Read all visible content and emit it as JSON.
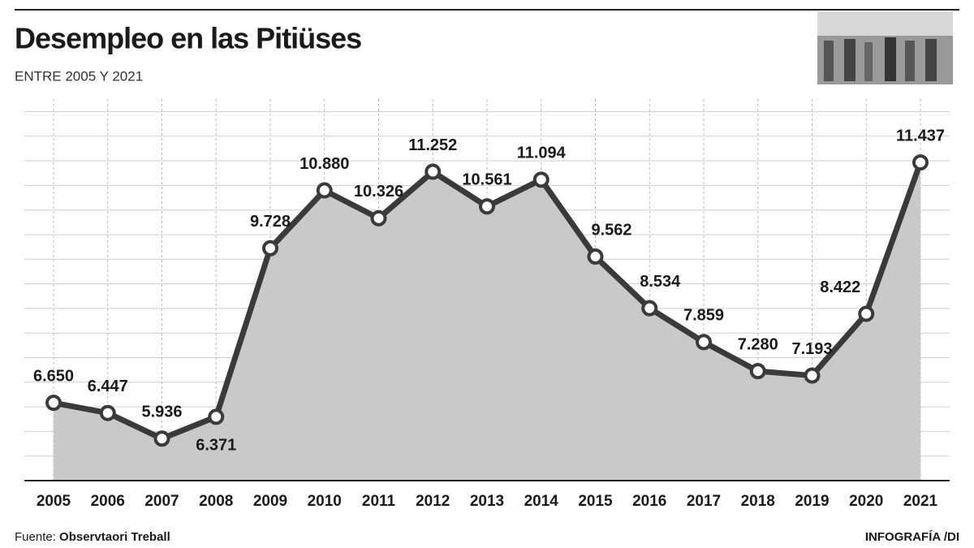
{
  "chart_data": {
    "type": "area-line",
    "title": "Desempleo en las Pitiüses",
    "subtitle": "ENTRE 2005 Y 2021",
    "categories": [
      "2005",
      "2006",
      "2007",
      "2008",
      "2009",
      "2010",
      "2011",
      "2012",
      "2013",
      "2014",
      "2015",
      "2016",
      "2017",
      "2018",
      "2019",
      "2020",
      "2021"
    ],
    "values": [
      6650,
      6447,
      5936,
      6371,
      9728,
      10880,
      10326,
      11252,
      10561,
      11094,
      9562,
      8534,
      7859,
      7280,
      7193,
      8422,
      11437
    ],
    "value_labels": [
      "6.650",
      "6.447",
      "5.936",
      "6.371",
      "9.728",
      "10.880",
      "10.326",
      "11.252",
      "10.561",
      "11.094",
      "9.562",
      "8.534",
      "7.859",
      "7.280",
      "7.193",
      "8.422",
      "11.437"
    ],
    "color": "#3a3a3a",
    "fill": "#c9c9c9",
    "ylim": [
      5100,
      12700
    ],
    "grid": true,
    "source_label": "Fuente:",
    "source": "Observtaori Treball",
    "credit": "INFOGRAFÍA /DI"
  }
}
